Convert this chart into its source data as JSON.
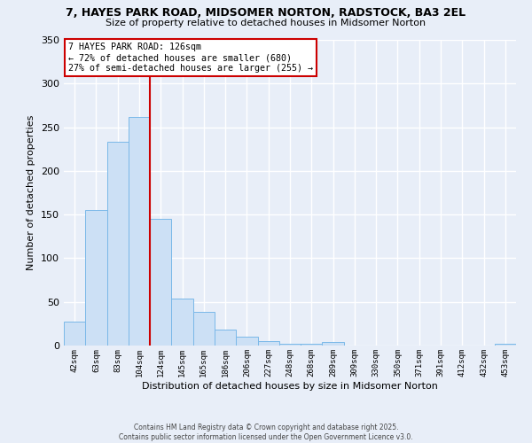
{
  "title_line1": "7, HAYES PARK ROAD, MIDSOMER NORTON, RADSTOCK, BA3 2EL",
  "title_line2": "Size of property relative to detached houses in Midsomer Norton",
  "xlabel": "Distribution of detached houses by size in Midsomer Norton",
  "ylabel": "Number of detached properties",
  "bar_labels": [
    "42sqm",
    "63sqm",
    "83sqm",
    "104sqm",
    "124sqm",
    "145sqm",
    "165sqm",
    "186sqm",
    "206sqm",
    "227sqm",
    "248sqm",
    "268sqm",
    "289sqm",
    "309sqm",
    "330sqm",
    "350sqm",
    "371sqm",
    "391sqm",
    "412sqm",
    "432sqm",
    "453sqm"
  ],
  "bar_values": [
    27,
    155,
    233,
    262,
    145,
    54,
    39,
    18,
    10,
    5,
    2,
    2,
    4,
    0,
    0,
    0,
    0,
    0,
    0,
    0,
    2
  ],
  "bar_color": "#cce0f5",
  "bar_edge_color": "#7ab8e8",
  "bar_width": 1.0,
  "vline_color": "#cc0000",
  "ylim": [
    0,
    350
  ],
  "yticks": [
    0,
    50,
    100,
    150,
    200,
    250,
    300,
    350
  ],
  "annotation_title": "7 HAYES PARK ROAD: 126sqm",
  "annotation_line2": "← 72% of detached houses are smaller (680)",
  "annotation_line3": "27% of semi-detached houses are larger (255) →",
  "annotation_box_color": "#ffffff",
  "annotation_box_edge": "#cc0000",
  "footer_line1": "Contains HM Land Registry data © Crown copyright and database right 2025.",
  "footer_line2": "Contains public sector information licensed under the Open Government Licence v3.0.",
  "bg_color": "#e8eef8",
  "plot_bg_color": "#e8eef8"
}
